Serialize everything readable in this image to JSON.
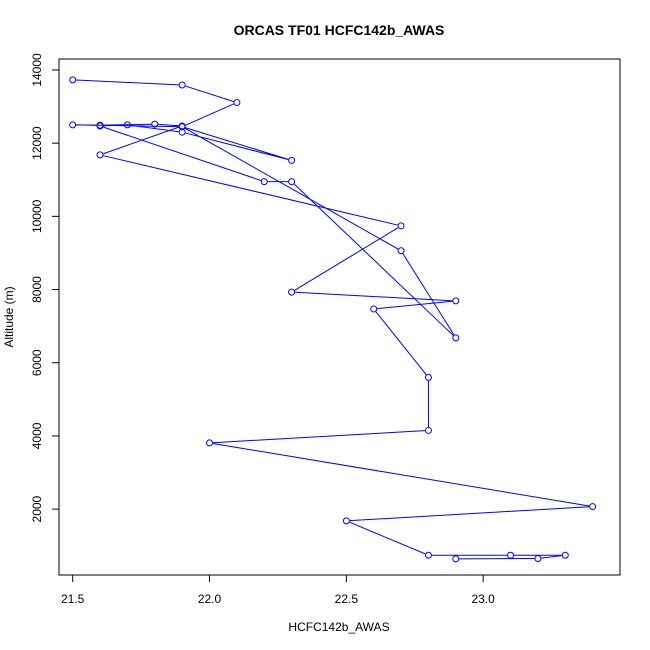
{
  "chart_data": {
    "type": "line",
    "title": "ORCAS TF01 HCFC142b_AWAS",
    "xlabel": "HCFC142b_AWAS",
    "ylabel": "Altitude (m)",
    "xlim": [
      21.45,
      23.5
    ],
    "ylim": [
      200,
      14300
    ],
    "x_ticks": [
      "21.5",
      "22.0",
      "22.5",
      "23.0"
    ],
    "y_ticks": [
      "2000",
      "4000",
      "6000",
      "8000",
      "10000",
      "12000",
      "14000"
    ],
    "grid": false,
    "marker": "open-circle",
    "series": [
      {
        "color": "#0000ff",
        "points": [
          [
            22.9,
            640
          ],
          [
            23.2,
            650
          ],
          [
            23.3,
            740
          ],
          [
            23.1,
            740
          ],
          [
            22.8,
            740
          ],
          [
            22.5,
            1680
          ],
          [
            23.4,
            2070
          ],
          [
            22.0,
            3810
          ],
          [
            22.8,
            4150
          ],
          [
            22.8,
            5600
          ],
          [
            22.6,
            7470
          ],
          [
            22.9,
            7690
          ],
          [
            22.3,
            7930
          ],
          [
            22.7,
            9740
          ],
          [
            21.6,
            11680
          ],
          [
            21.9,
            12470
          ],
          [
            21.8,
            12520
          ],
          [
            21.6,
            12490
          ],
          [
            21.5,
            12500
          ],
          [
            21.9,
            12450
          ],
          [
            22.7,
            9060
          ],
          [
            22.9,
            6680
          ],
          [
            22.3,
            10950
          ],
          [
            22.2,
            10950
          ],
          [
            21.6,
            12470
          ],
          [
            21.7,
            12500
          ],
          [
            21.9,
            12300
          ],
          [
            22.3,
            11530
          ],
          [
            21.9,
            12450
          ],
          [
            22.1,
            13110
          ],
          [
            21.9,
            13590
          ],
          [
            21.5,
            13730
          ]
        ]
      }
    ]
  }
}
